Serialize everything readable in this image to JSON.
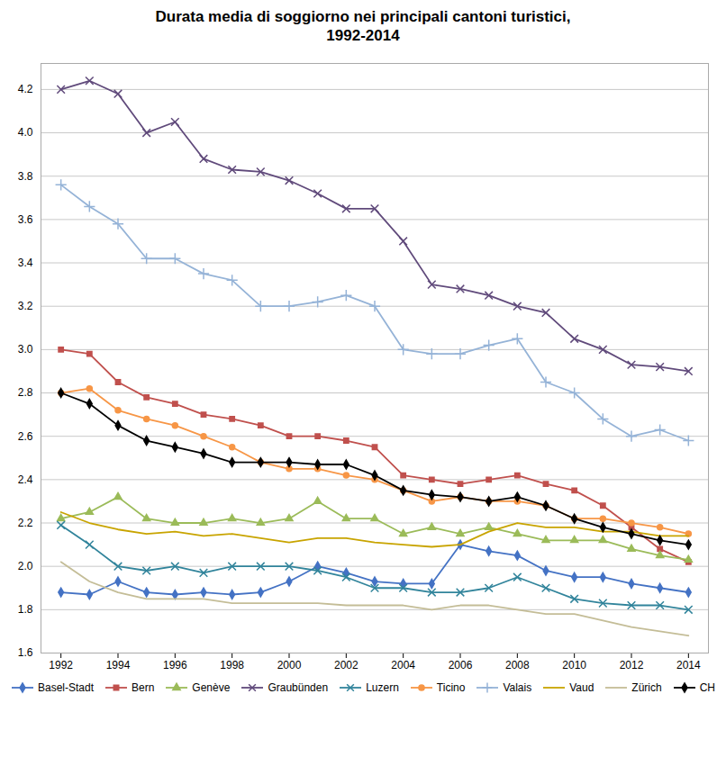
{
  "chart_data": {
    "type": "line",
    "title": "Durata media di soggiorno nei principali cantoni turistici,\n1992-2014",
    "x": [
      1992,
      1993,
      1994,
      1995,
      1996,
      1997,
      1998,
      1999,
      2000,
      2001,
      2002,
      2003,
      2004,
      2005,
      2006,
      2007,
      2008,
      2009,
      2010,
      2011,
      2012,
      2013,
      2014
    ],
    "series": [
      {
        "name": "Basel-Stadt",
        "color": "#4472C4",
        "marker": "diamond",
        "values": [
          1.88,
          1.87,
          1.93,
          1.88,
          1.87,
          1.88,
          1.87,
          1.88,
          1.93,
          2.0,
          1.97,
          1.93,
          1.92,
          1.92,
          2.1,
          2.07,
          2.05,
          1.98,
          1.95,
          1.95,
          1.92,
          1.9,
          1.88
        ]
      },
      {
        "name": "Bern",
        "color": "#C0504D",
        "marker": "square",
        "values": [
          3.0,
          2.98,
          2.85,
          2.78,
          2.75,
          2.7,
          2.68,
          2.65,
          2.6,
          2.6,
          2.58,
          2.55,
          2.42,
          2.4,
          2.38,
          2.4,
          2.42,
          2.38,
          2.35,
          2.28,
          2.18,
          2.08,
          2.02
        ]
      },
      {
        "name": "Genève",
        "color": "#9BBB59",
        "marker": "triangle",
        "values": [
          2.22,
          2.25,
          2.32,
          2.22,
          2.2,
          2.2,
          2.22,
          2.2,
          2.22,
          2.3,
          2.22,
          2.22,
          2.15,
          2.18,
          2.15,
          2.18,
          2.15,
          2.12,
          2.12,
          2.12,
          2.08,
          2.05,
          2.03
        ]
      },
      {
        "name": "Graubünden",
        "color": "#604A7B",
        "marker": "times",
        "values": [
          4.2,
          4.24,
          4.18,
          4.0,
          4.05,
          3.88,
          3.83,
          3.82,
          3.78,
          3.72,
          3.65,
          3.65,
          3.5,
          3.3,
          3.28,
          3.25,
          3.2,
          3.17,
          3.05,
          3.0,
          2.93,
          2.92,
          2.9
        ]
      },
      {
        "name": "Luzern",
        "color": "#31849B",
        "marker": "times",
        "values": [
          2.19,
          2.1,
          2.0,
          1.98,
          2.0,
          1.97,
          2.0,
          2.0,
          2.0,
          1.98,
          1.95,
          1.9,
          1.9,
          1.88,
          1.88,
          1.9,
          1.95,
          1.9,
          1.85,
          1.83,
          1.82,
          1.82,
          1.8
        ]
      },
      {
        "name": "Ticino",
        "color": "#F79646",
        "marker": "circle",
        "values": [
          2.8,
          2.82,
          2.72,
          2.68,
          2.65,
          2.6,
          2.55,
          2.48,
          2.45,
          2.45,
          2.42,
          2.4,
          2.35,
          2.3,
          2.32,
          2.3,
          2.3,
          2.28,
          2.22,
          2.22,
          2.2,
          2.18,
          2.15
        ]
      },
      {
        "name": "Valais",
        "color": "#95B3D7",
        "marker": "plus",
        "values": [
          3.76,
          3.66,
          3.58,
          3.42,
          3.42,
          3.35,
          3.32,
          3.2,
          3.2,
          3.22,
          3.25,
          3.2,
          3.0,
          2.98,
          2.98,
          3.02,
          3.05,
          2.85,
          2.8,
          2.68,
          2.6,
          2.63,
          2.58
        ]
      },
      {
        "name": "Vaud",
        "color": "#C8A400",
        "marker": "none",
        "values": [
          2.25,
          2.2,
          2.17,
          2.15,
          2.16,
          2.14,
          2.15,
          2.13,
          2.11,
          2.13,
          2.13,
          2.11,
          2.1,
          2.09,
          2.1,
          2.16,
          2.2,
          2.18,
          2.18,
          2.16,
          2.16,
          2.14,
          2.14
        ]
      },
      {
        "name": "Zürich",
        "color": "#C4BD97",
        "marker": "none",
        "values": [
          2.02,
          1.93,
          1.88,
          1.85,
          1.85,
          1.85,
          1.83,
          1.83,
          1.83,
          1.83,
          1.82,
          1.82,
          1.82,
          1.8,
          1.82,
          1.82,
          1.8,
          1.78,
          1.78,
          1.75,
          1.72,
          1.7,
          1.68
        ]
      },
      {
        "name": "CH",
        "color": "#000000",
        "marker": "diamond",
        "values": [
          2.8,
          2.75,
          2.65,
          2.58,
          2.55,
          2.52,
          2.48,
          2.48,
          2.48,
          2.47,
          2.47,
          2.42,
          2.35,
          2.33,
          2.32,
          2.3,
          2.32,
          2.28,
          2.22,
          2.18,
          2.15,
          2.12,
          2.1
        ]
      }
    ],
    "xlim": [
      1991.3,
      2014.7
    ],
    "xticks": [
      1992,
      1994,
      1996,
      1998,
      2000,
      2002,
      2004,
      2006,
      2008,
      2010,
      2012,
      2014
    ],
    "ylim": [
      1.6,
      4.32
    ],
    "yticks": [
      1.6,
      1.8,
      {
        "value": 2,
        "label": "2.0"
      },
      2.2,
      2.4,
      2.6,
      2.8,
      {
        "value": 3,
        "label": "3.0"
      },
      3.2,
      3.4,
      3.6,
      3.8,
      {
        "value": 4,
        "label": "4.0"
      },
      4.2
    ],
    "grid": "y",
    "legend": "bottom"
  }
}
